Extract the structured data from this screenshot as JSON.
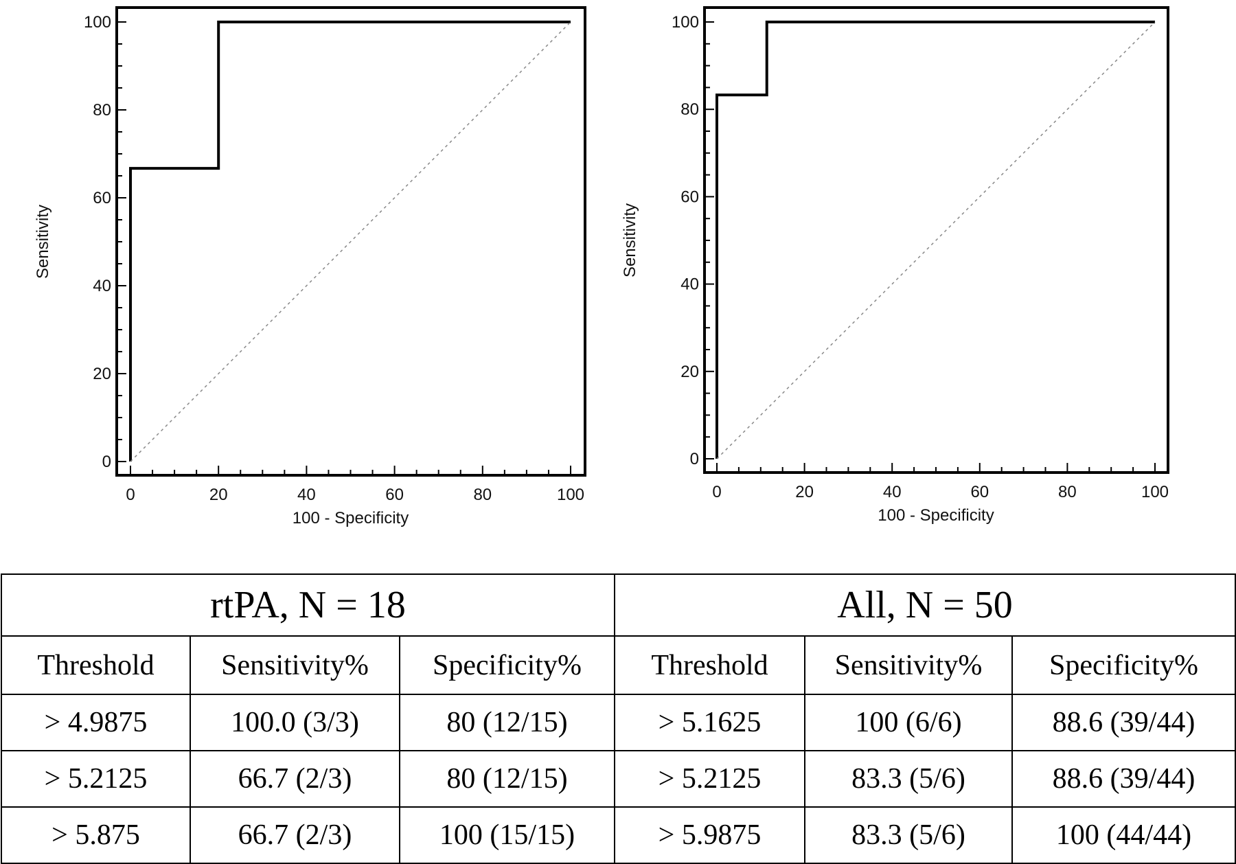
{
  "chart_data": [
    {
      "type": "line",
      "title": "",
      "xlabel": "100 - Specificity",
      "ylabel": "Sensitivity",
      "xlim": [
        0,
        100
      ],
      "ylim": [
        0,
        100
      ],
      "xticks": [
        "0",
        "20",
        "40",
        "60",
        "80",
        "100"
      ],
      "yticks": [
        "0",
        "20",
        "40",
        "60",
        "80",
        "100"
      ],
      "grid": false,
      "series": [
        {
          "kind": "roc",
          "x": [
            0,
            0,
            20,
            20,
            100
          ],
          "y": [
            0,
            66.7,
            66.7,
            100,
            100
          ]
        },
        {
          "kind": "reference",
          "x": [
            0,
            100
          ],
          "y": [
            0,
            100
          ]
        }
      ]
    },
    {
      "type": "line",
      "title": "",
      "xlabel": "100 - Specificity",
      "ylabel": "Sensitivity",
      "xlim": [
        0,
        100
      ],
      "ylim": [
        0,
        100
      ],
      "xticks": [
        "0",
        "20",
        "40",
        "60",
        "80",
        "100"
      ],
      "yticks": [
        "0",
        "20",
        "40",
        "60",
        "80",
        "100"
      ],
      "grid": false,
      "series": [
        {
          "kind": "roc",
          "x": [
            0,
            0,
            11.4,
            11.4,
            100
          ],
          "y": [
            0,
            83.3,
            83.3,
            100,
            100
          ]
        },
        {
          "kind": "reference",
          "x": [
            0,
            100
          ],
          "y": [
            0,
            100
          ]
        }
      ]
    }
  ],
  "table": {
    "groups": [
      "rtPA, N = 18",
      "All, N = 50"
    ],
    "columns": [
      "Threshold",
      "Sensitivity%",
      "Specificity%",
      "Threshold",
      "Sensitivity%",
      "Specificity%"
    ],
    "rows": [
      [
        "> 4.9875",
        "100.0 (3/3)",
        "80 (12/15)",
        "> 5.1625",
        "100 (6/6)",
        "88.6 (39/44)"
      ],
      [
        "> 5.2125",
        "66.7 (2/3)",
        "80 (12/15)",
        "> 5.2125",
        "83.3 (5/6)",
        "88.6 (39/44)"
      ],
      [
        "> 5.875",
        "66.7 (2/3)",
        "100 (15/15)",
        "> 5.9875",
        "83.3 (5/6)",
        "100 (44/44)"
      ]
    ]
  },
  "colors": {
    "roc_line": "#000000",
    "reference_line": "#888888"
  }
}
